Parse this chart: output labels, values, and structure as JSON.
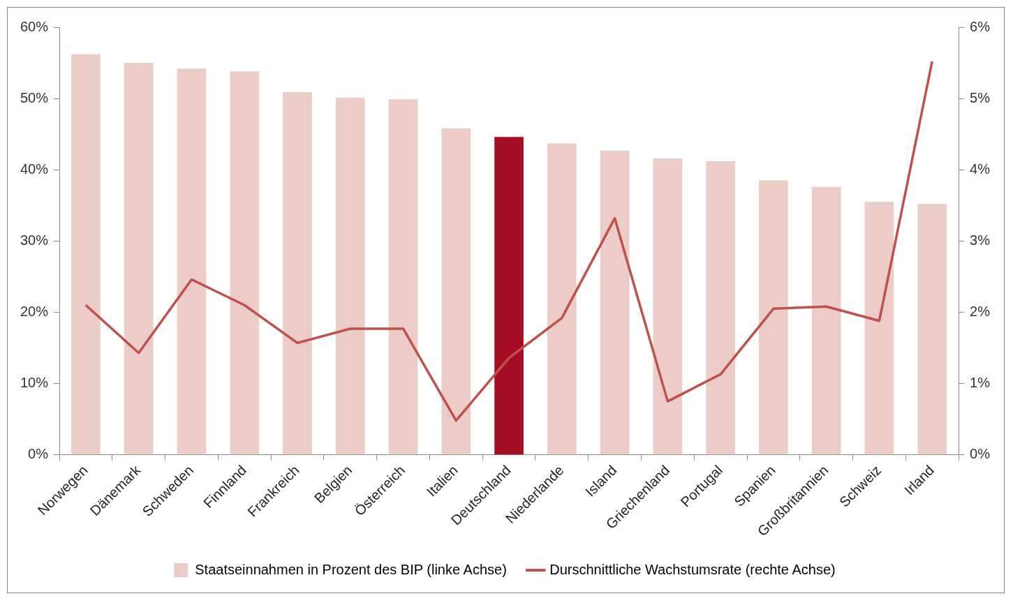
{
  "chart_data": {
    "type": "bar",
    "categories": [
      "Norwegen",
      "Dänemark",
      "Schweden",
      "Finnland",
      "Frankreich",
      "Belgien",
      "Österreich",
      "Italien",
      "Deutschland",
      "Niederlande",
      "Island",
      "Griechenland",
      "Portugal",
      "Spanien",
      "Großbritannien",
      "Schweiz",
      "Irland"
    ],
    "series": [
      {
        "name": "Staatseinnahmen in Prozent des BIP (linke Achse)",
        "color": "#ecccc7",
        "colors": [
          "#ecccc7",
          "#ecccc7",
          "#ecccc7",
          "#ecccc7",
          "#ecccc7",
          "#ecccc7",
          "#ecccc7",
          "#ecccc7",
          "#a50d25",
          "#ecccc7",
          "#ecccc7",
          "#ecccc7",
          "#ecccc7",
          "#ecccc7",
          "#ecccc7",
          "#ecccc7",
          "#ecccc7"
        ],
        "values": [
          56.2,
          55.0,
          54.2,
          53.8,
          50.9,
          50.1,
          49.9,
          45.8,
          44.6,
          43.7,
          42.7,
          41.6,
          41.2,
          38.5,
          37.6,
          35.5,
          35.2
        ]
      },
      {
        "name": "Durschnittliche Wachstumsrate (rechte Achse)",
        "type": "line",
        "axis": "y2",
        "color": "#c0504d",
        "values": [
          2.1,
          1.43,
          2.46,
          2.1,
          1.57,
          1.77,
          1.77,
          0.48,
          1.36,
          1.92,
          3.32,
          0.75,
          1.13,
          2.05,
          2.08,
          1.88,
          5.52
        ]
      }
    ],
    "ylim": [
      0,
      60
    ],
    "yticks": [
      {
        "value": 0,
        "label": "0%"
      },
      {
        "value": 10,
        "label": "10%"
      },
      {
        "value": 20,
        "label": "20%"
      },
      {
        "value": 30,
        "label": "30%"
      },
      {
        "value": 40,
        "label": "40%"
      },
      {
        "value": 50,
        "label": "50%"
      },
      {
        "value": 60,
        "label": "60%"
      }
    ],
    "y2lim": [
      0,
      6
    ],
    "y2ticks": [
      {
        "value": 0,
        "label": "0%"
      },
      {
        "value": 1,
        "label": "1%"
      },
      {
        "value": 2,
        "label": "2%"
      },
      {
        "value": 3,
        "label": "3%"
      },
      {
        "value": 4,
        "label": "4%"
      },
      {
        "value": 5,
        "label": "5%"
      },
      {
        "value": 6,
        "label": "6%"
      }
    ],
    "grid": false,
    "legend": "bottom",
    "marker": "none",
    "line_style": "solid"
  }
}
